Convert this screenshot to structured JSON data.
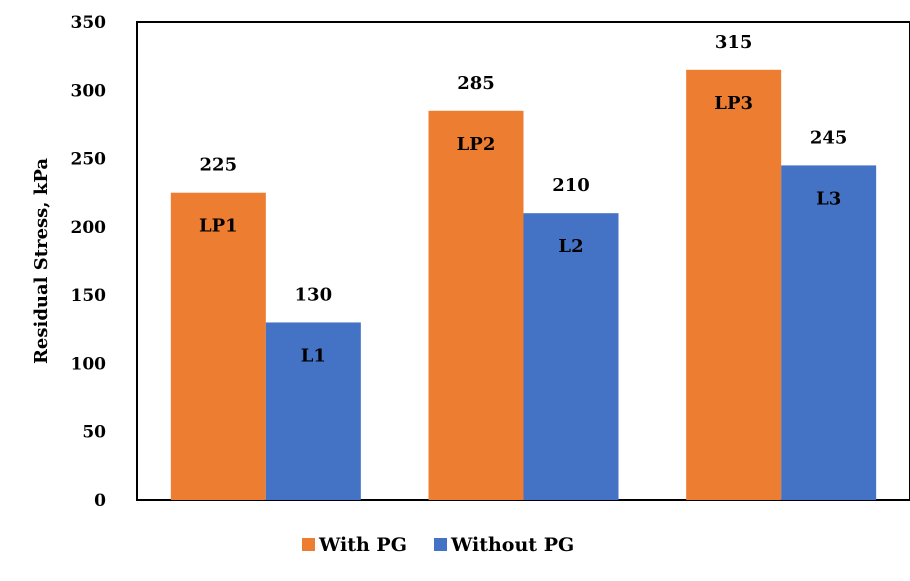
{
  "chart_data": {
    "type": "bar",
    "title": "",
    "xlabel": "",
    "ylabel": "Residual Stress, kPa",
    "ylim": [
      0,
      350
    ],
    "yticks": [
      0,
      50,
      100,
      150,
      200,
      250,
      300,
      350
    ],
    "ytick_labels": [
      "0",
      "50",
      "100",
      "150",
      "200",
      "250",
      "300",
      "350"
    ],
    "grid": false,
    "legend_position": "bottom",
    "categories": [
      "",
      "",
      ""
    ],
    "series": [
      {
        "name": "With PG",
        "color": "#ED7D31",
        "values": [
          225,
          285,
          315
        ],
        "value_labels": [
          "225",
          "285",
          "315"
        ],
        "bar_labels": [
          "LP1",
          "LP2",
          "LP3"
        ]
      },
      {
        "name": "Without PG",
        "color": "#4472C4",
        "values": [
          130,
          210,
          245
        ],
        "value_labels": [
          "130",
          "210",
          "245"
        ],
        "bar_labels": [
          "L1",
          "L2",
          "L3"
        ]
      }
    ]
  }
}
